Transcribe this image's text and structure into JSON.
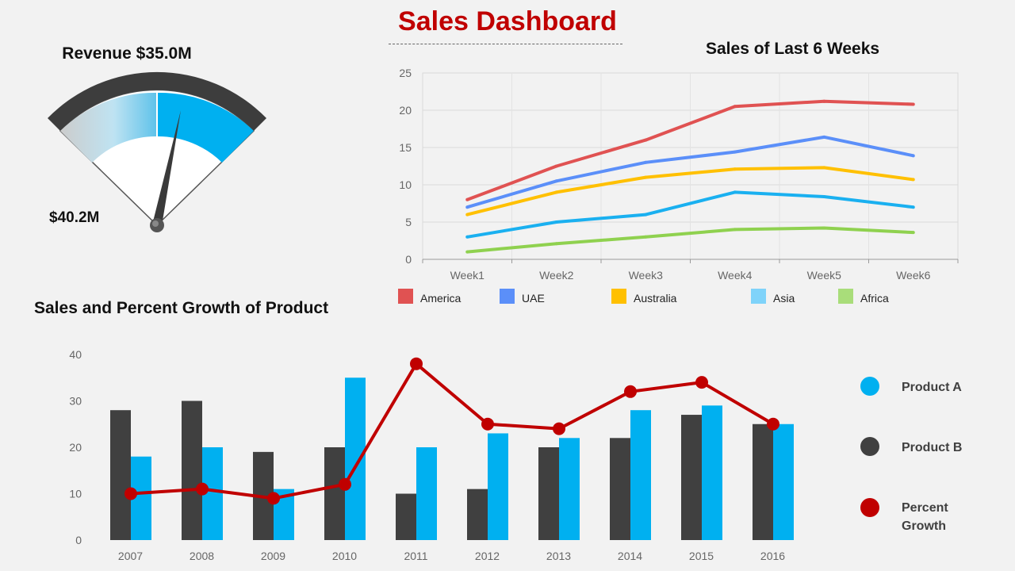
{
  "dashboard": {
    "title": "Sales Dashboard"
  },
  "gauge": {
    "title": "Revenue $35.0M",
    "min_label": "$40.2M",
    "value_fraction": 0.63,
    "colors": {
      "frame": "#3d3d3d",
      "fill": "#00b0f0",
      "gradient_start": "#cccccc",
      "needle": "#3a3a3a"
    }
  },
  "chart_data": [
    {
      "type": "line",
      "title": "Sales of Last 6 Weeks",
      "categories": [
        "Week1",
        "Week2",
        "Week3",
        "Week4",
        "Week5",
        "Week6"
      ],
      "ylim": [
        0,
        25
      ],
      "yticks": [
        0,
        5,
        10,
        15,
        20,
        25
      ],
      "grid": true,
      "legend_position": "bottom",
      "series": [
        {
          "name": "America",
          "color": "#e05252",
          "values": [
            8,
            12.5,
            16,
            20.5,
            21.2,
            20.8
          ]
        },
        {
          "name": "UAE",
          "color": "#5b8ff9",
          "values": [
            7,
            10.5,
            13,
            14.4,
            16.4,
            13.9
          ]
        },
        {
          "name": "Australia",
          "color": "#ffc000",
          "values": [
            6,
            9,
            11,
            12.1,
            12.3,
            10.7
          ]
        },
        {
          "name": "Asia",
          "color": "#1ab0f0",
          "values": [
            3,
            5,
            6,
            9,
            8.4,
            7
          ]
        },
        {
          "name": "Africa",
          "color": "#8fd14f",
          "values": [
            1,
            2.1,
            3,
            4,
            4.2,
            3.6
          ]
        }
      ]
    },
    {
      "type": "bar",
      "title": "Sales and Percent Growth of Product",
      "categories": [
        "2007",
        "2008",
        "2009",
        "2010",
        "2011",
        "2012",
        "2013",
        "2014",
        "2015",
        "2016"
      ],
      "ylim": [
        0,
        40
      ],
      "yticks": [
        0,
        10,
        20,
        30,
        40
      ],
      "grid": false,
      "legend_position": "right",
      "series": [
        {
          "name": "Product A",
          "color": "#00b0f0",
          "values": [
            18,
            20,
            11,
            35,
            20,
            23,
            22,
            28,
            29,
            25
          ]
        },
        {
          "name": "Product B",
          "color": "#404040",
          "values": [
            28,
            30,
            19,
            20,
            10,
            11,
            20,
            22,
            27,
            25
          ]
        },
        {
          "name": "Percent Growth",
          "color": "#c00000",
          "type": "line",
          "values": [
            10,
            11,
            9,
            12,
            38,
            25,
            24,
            32,
            34,
            25
          ]
        }
      ]
    }
  ]
}
